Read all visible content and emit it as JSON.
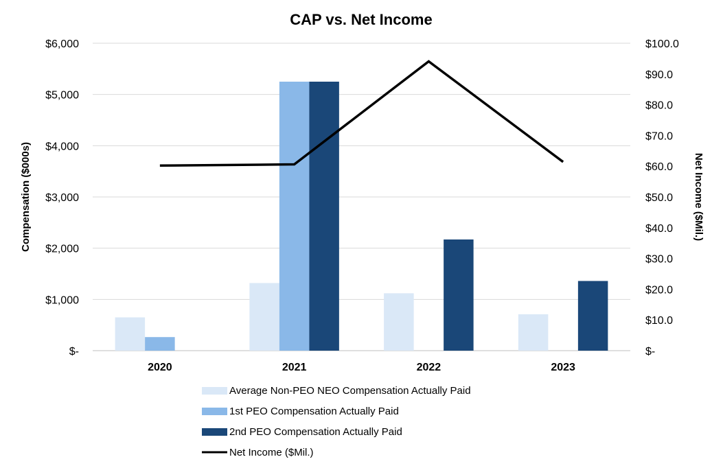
{
  "chart_data": {
    "type": "bar",
    "title": "CAP vs. Net Income",
    "categories": [
      "2020",
      "2021",
      "2022",
      "2023"
    ],
    "ylabel": "Compensation ($000s)",
    "y2label": "Net Income ($Mil.)",
    "ylim": [
      0,
      6000
    ],
    "y2lim": [
      0,
      100
    ],
    "yticks": [
      0,
      1000,
      2000,
      3000,
      4000,
      5000,
      6000
    ],
    "ytick_labels": [
      "$-",
      "$1,000",
      "$2,000",
      "$3,000",
      "$4,000",
      "$5,000",
      "$6,000"
    ],
    "y2ticks": [
      0,
      10,
      20,
      30,
      40,
      50,
      60,
      70,
      80,
      90,
      100
    ],
    "y2tick_labels": [
      "$-",
      "$10.0",
      "$20.0",
      "$30.0",
      "$40.0",
      "$50.0",
      "$60.0",
      "$70.0",
      "$80.0",
      "$90.0",
      "$100.0"
    ],
    "grid": true,
    "legend_position": "bottom",
    "series": [
      {
        "name": "Average Non-PEO NEO Compensation Actually Paid",
        "kind": "bar",
        "axis": "left",
        "color": "#dae8f7",
        "values": [
          650,
          1320,
          1120,
          710
        ]
      },
      {
        "name": "1st PEO Compensation Actually Paid",
        "kind": "bar",
        "axis": "left",
        "color": "#8ab8e8",
        "values": [
          265,
          5250,
          0,
          0
        ]
      },
      {
        "name": "2nd PEO Compensation Actually Paid",
        "kind": "bar",
        "axis": "left",
        "color": "#1a4778",
        "values": [
          0,
          5250,
          2170,
          1360
        ]
      },
      {
        "name": "Net Income ($Mil.)",
        "kind": "line",
        "axis": "right",
        "color": "#000000",
        "values": [
          60.2,
          60.6,
          94.1,
          61.4
        ]
      }
    ]
  }
}
